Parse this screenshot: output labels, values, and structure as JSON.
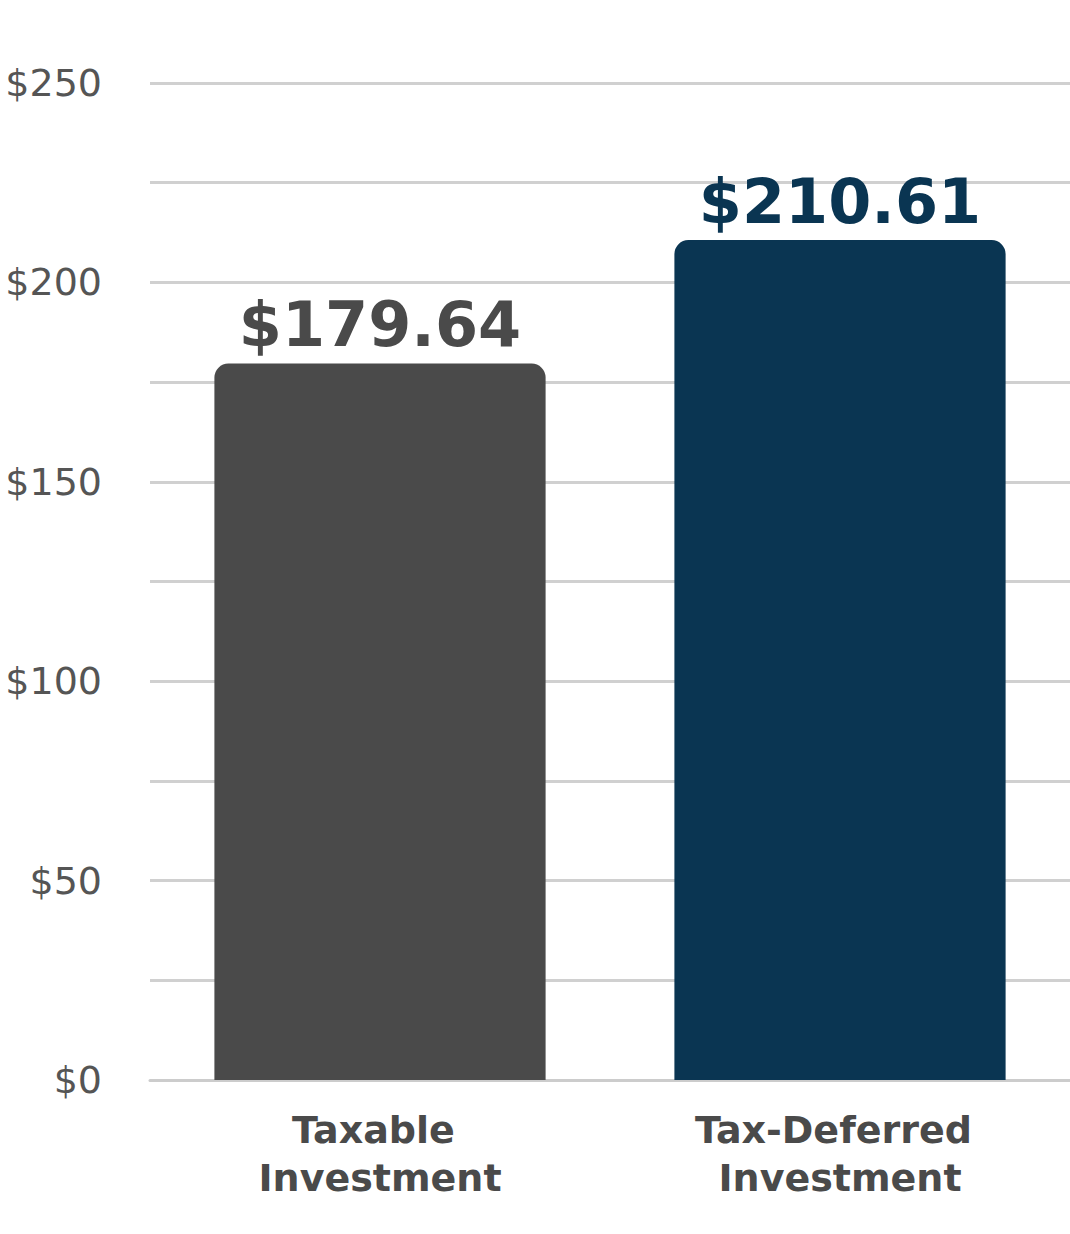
{
  "chart_data": {
    "type": "bar",
    "categories": [
      "Taxable Investment",
      "Tax-Deferred Investment"
    ],
    "values": [
      179.64,
      210.61
    ],
    "value_labels": [
      "$179.64",
      "$210.61"
    ],
    "colors": [
      "#4a4a4a",
      "#0a3552"
    ],
    "ylim": [
      0,
      250
    ],
    "yticks": [
      {
        "value": 0,
        "label": "$0"
      },
      {
        "value": 50,
        "label": "$50"
      },
      {
        "value": 100,
        "label": "$100"
      },
      {
        "value": 150,
        "label": "$150"
      },
      {
        "value": 200,
        "label": "$200"
      },
      {
        "value": 250,
        "label": "$250"
      }
    ],
    "grid": true,
    "data_labels": true
  }
}
